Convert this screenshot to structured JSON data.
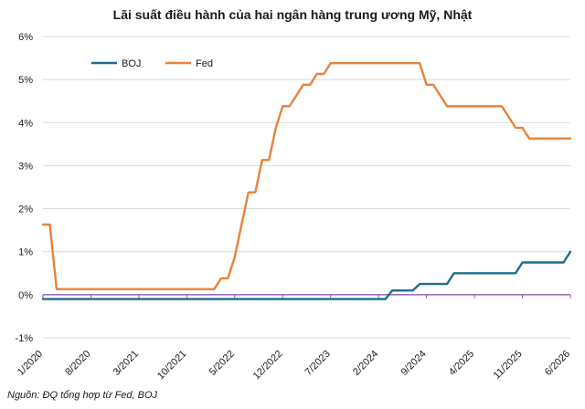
{
  "chart_data": {
    "type": "line",
    "title": "Lãi suất điều hành của hai ngân hàng trung ương Mỹ, Nhật",
    "source_note": "Nguồn: ĐQ tổng hợp từ Fed, BOJ",
    "xlabel": "",
    "ylabel": "",
    "ylim": [
      -1,
      6
    ],
    "y_ticks": [
      "-1%",
      "0%",
      "1%",
      "2%",
      "3%",
      "4%",
      "5%",
      "6%"
    ],
    "x_ticks": [
      "1/2020",
      "8/2020",
      "3/2021",
      "10/2021",
      "5/2022",
      "12/2022",
      "7/2023",
      "2/2024",
      "9/2024",
      "4/2025",
      "11/2025",
      "6/2026"
    ],
    "x_range_months": [
      "1/2020",
      "6/2026"
    ],
    "grid": "horizontal",
    "legend": "top-left",
    "series": [
      {
        "name": "BOJ",
        "color": "#1f6e8c",
        "points": [
          [
            "1/2020",
            -0.1
          ],
          [
            "3/2024",
            -0.1
          ],
          [
            "4/2024",
            0.1
          ],
          [
            "7/2024",
            0.1
          ],
          [
            "8/2024",
            0.25
          ],
          [
            "12/2024",
            0.25
          ],
          [
            "1/2025",
            0.5
          ],
          [
            "10/2025",
            0.5
          ],
          [
            "11/2025",
            0.75
          ],
          [
            "5/2026",
            0.75
          ],
          [
            "6/2026",
            1.0
          ]
        ]
      },
      {
        "name": "Fed",
        "color": "#e8833a",
        "points": [
          [
            "1/2020",
            1.63
          ],
          [
            "2/2020",
            1.63
          ],
          [
            "3/2020",
            0.13
          ],
          [
            "2/2022",
            0.13
          ],
          [
            "3/2022",
            0.38
          ],
          [
            "4/2022",
            0.38
          ],
          [
            "5/2022",
            0.88
          ],
          [
            "6/2022",
            1.63
          ],
          [
            "7/2022",
            2.38
          ],
          [
            "8/2022",
            2.38
          ],
          [
            "9/2022",
            3.13
          ],
          [
            "10/2022",
            3.13
          ],
          [
            "11/2022",
            3.88
          ],
          [
            "12/2022",
            4.38
          ],
          [
            "1/2023",
            4.38
          ],
          [
            "2/2023",
            4.63
          ],
          [
            "3/2023",
            4.88
          ],
          [
            "4/2023",
            4.88
          ],
          [
            "5/2023",
            5.13
          ],
          [
            "6/2023",
            5.13
          ],
          [
            "7/2023",
            5.38
          ],
          [
            "8/2024",
            5.38
          ],
          [
            "9/2024",
            4.88
          ],
          [
            "10/2024",
            4.88
          ],
          [
            "11/2024",
            4.63
          ],
          [
            "12/2024",
            4.38
          ],
          [
            "8/2025",
            4.38
          ],
          [
            "9/2025",
            4.13
          ],
          [
            "10/2025",
            3.88
          ],
          [
            "11/2025",
            3.88
          ],
          [
            "12/2025",
            3.63
          ],
          [
            "6/2026",
            3.63
          ]
        ]
      }
    ]
  }
}
